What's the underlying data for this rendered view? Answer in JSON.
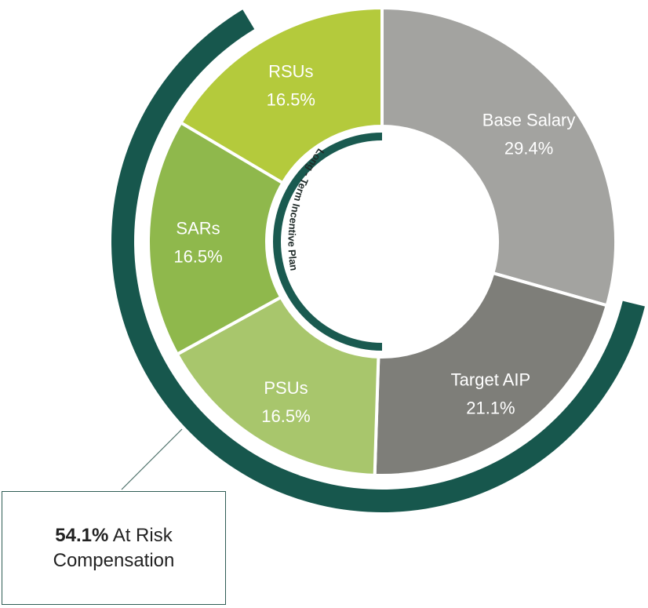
{
  "chart_data": {
    "type": "pie",
    "variant": "donut",
    "slices": [
      {
        "name": "Base Salary",
        "value": 29.4,
        "value_label": "29.4%",
        "color": "#a3a3a0"
      },
      {
        "name": "Target AIP",
        "value": 21.1,
        "value_label": "21.1%",
        "color": "#7e7e79"
      },
      {
        "name": "PSUs",
        "value": 16.5,
        "value_label": "16.5%",
        "color": "#a8c66c"
      },
      {
        "name": "SARs",
        "value": 16.5,
        "value_label": "16.5%",
        "color": "#8fb84c"
      },
      {
        "name": "RSUs",
        "value": 16.5,
        "value_label": "16.5%",
        "color": "#b4ca3c"
      }
    ],
    "inner_group_label": "Long - Term Incentive Plan",
    "inner_group_color": "#1a5a50",
    "outer_group_color": "#17574d",
    "callout": {
      "value": "54.1%",
      "text": "At Risk",
      "text2": "Compensation"
    }
  }
}
